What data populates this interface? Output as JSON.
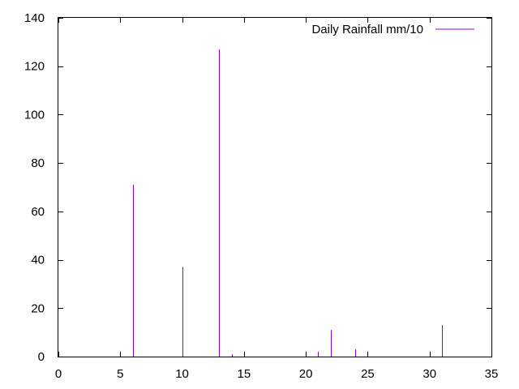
{
  "chart_data": {
    "type": "bar",
    "style": "impulses",
    "x": [
      6,
      10,
      13,
      14,
      21,
      22,
      24,
      31
    ],
    "series": [
      {
        "name": "Daily Rainfall mm/10",
        "color": "#9400d3",
        "values": [
          71,
          37,
          127,
          1,
          2,
          11,
          3,
          13
        ]
      }
    ],
    "xlim": [
      0,
      35
    ],
    "ylim": [
      0,
      140
    ],
    "x_ticks": [
      0,
      5,
      10,
      15,
      20,
      25,
      30,
      35
    ],
    "y_ticks": [
      0,
      20,
      40,
      60,
      80,
      100,
      120,
      140
    ],
    "grid": false,
    "legend_position": "top-right"
  }
}
